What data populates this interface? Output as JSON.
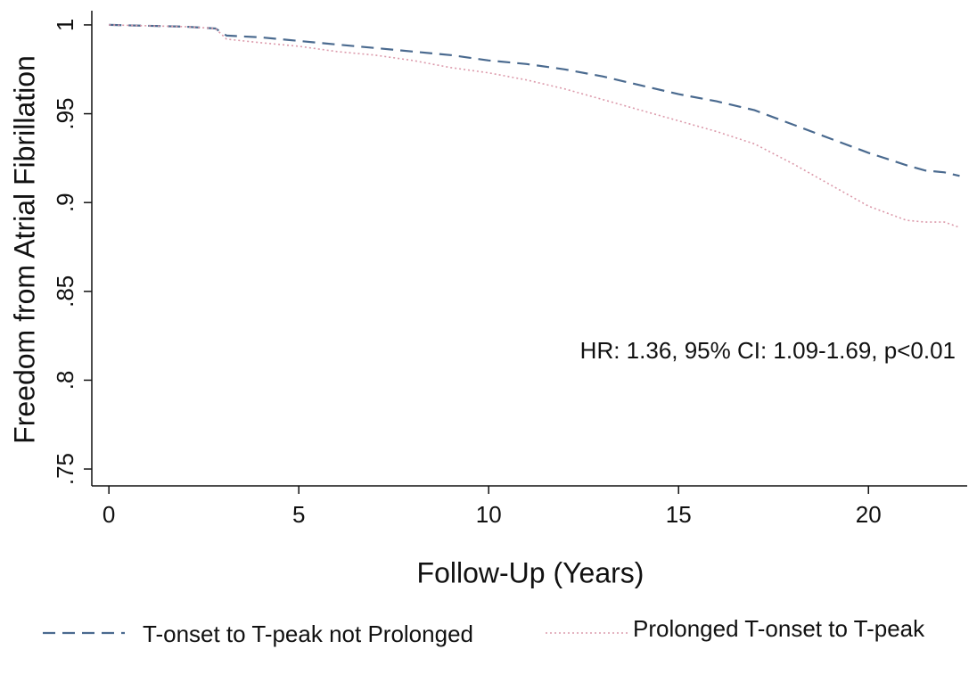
{
  "chart_data": {
    "type": "line",
    "x_label": "Follow-Up (Years)",
    "y_label": "Freedom from Atrial Fibrillation",
    "annotation": "HR: 1.36, 95% CI: 1.09-1.69, p<0.01",
    "x": [
      0,
      1,
      2,
      2.8,
      3.1,
      4,
      5,
      6,
      7,
      8,
      9,
      10,
      11,
      12,
      13,
      14,
      15,
      16,
      17,
      18,
      19,
      20,
      21,
      21.5,
      22,
      22.4
    ],
    "series": [
      {
        "name": "T-onset to T-peak not Prolonged",
        "color": "#4a6a8f",
        "linestyle": "dashed",
        "values": [
          1,
          0.9995,
          0.999,
          0.998,
          0.994,
          0.993,
          0.991,
          0.989,
          0.987,
          0.985,
          0.983,
          0.98,
          0.978,
          0.975,
          0.971,
          0.966,
          0.961,
          0.957,
          0.952,
          0.944,
          0.936,
          0.928,
          0.921,
          0.918,
          0.917,
          0.915
        ]
      },
      {
        "name": "Prolonged T-onset to T-peak",
        "color": "#dc9aab",
        "linestyle": "dotted",
        "values": [
          1,
          0.9995,
          0.999,
          0.998,
          0.992,
          0.99,
          0.988,
          0.985,
          0.983,
          0.98,
          0.976,
          0.973,
          0.969,
          0.964,
          0.958,
          0.952,
          0.946,
          0.94,
          0.933,
          0.922,
          0.91,
          0.898,
          0.89,
          0.889,
          0.889,
          0.886
        ]
      }
    ],
    "xlim": [
      -0.45,
      22.6
    ],
    "xticks": [
      0,
      5,
      10,
      15,
      20
    ],
    "ylim": [
      0.7405,
      1.008
    ],
    "yticks": [
      {
        "value": 0.75,
        "label": ".75"
      },
      {
        "value": 0.8,
        "label": ".8"
      },
      {
        "value": 0.85,
        "label": ".85"
      },
      {
        "value": 0.9,
        "label": ".9"
      },
      {
        "value": 0.95,
        "label": ".95"
      },
      1
    ],
    "grid": false,
    "legend": "bottom"
  }
}
